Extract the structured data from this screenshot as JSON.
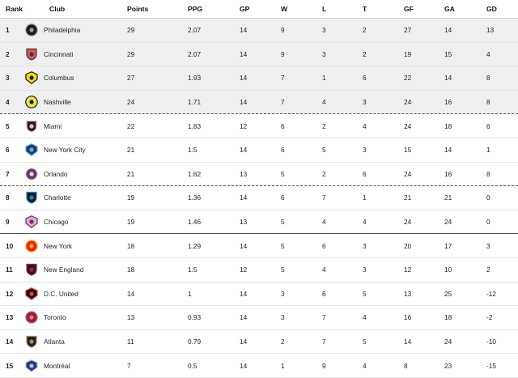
{
  "columns": {
    "rank": "Rank",
    "club": "Club",
    "points": "Points",
    "ppg": "PPG",
    "gp": "GP",
    "w": "W",
    "l": "L",
    "t": "T",
    "gf": "GF",
    "ga": "GA",
    "gd": "GD"
  },
  "rows": [
    {
      "rank": "1",
      "club": "Philadelphia",
      "points": "29",
      "ppg": "2.07",
      "gp": "14",
      "w": "9",
      "l": "3",
      "t": "2",
      "gf": "27",
      "ga": "14",
      "gd": "13",
      "logo_icon": "philadelphia-union-crest",
      "colors": [
        "#0a1e3c",
        "#b89b5e"
      ]
    },
    {
      "rank": "2",
      "club": "Cincinnati",
      "points": "29",
      "ppg": "2.07",
      "gp": "14",
      "w": "9",
      "l": "3",
      "t": "2",
      "gf": "19",
      "ga": "15",
      "gd": "4",
      "logo_icon": "fc-cincinnati-crest",
      "colors": [
        "#f05323",
        "#263b80"
      ]
    },
    {
      "rank": "3",
      "club": "Columbus",
      "points": "27",
      "ppg": "1.93",
      "gp": "14",
      "w": "7",
      "l": "1",
      "t": "6",
      "gf": "22",
      "ga": "14",
      "gd": "8",
      "logo_icon": "columbus-crew-crest",
      "colors": [
        "#fedd00",
        "#111111"
      ]
    },
    {
      "rank": "4",
      "club": "Nashville",
      "points": "24",
      "ppg": "1.71",
      "gp": "14",
      "w": "7",
      "l": "4",
      "t": "3",
      "gf": "24",
      "ga": "16",
      "gd": "8",
      "logo_icon": "nashville-sc-crest",
      "colors": [
        "#ece83a",
        "#1f1646"
      ]
    },
    {
      "rank": "5",
      "club": "Miami",
      "points": "22",
      "ppg": "1.83",
      "gp": "12",
      "w": "6",
      "l": "2",
      "t": "4",
      "gf": "24",
      "ga": "18",
      "gd": "6",
      "logo_icon": "inter-miami-crest",
      "colors": [
        "#231f20",
        "#f7b5cd"
      ]
    },
    {
      "rank": "6",
      "club": "New York City",
      "points": "21",
      "ppg": "1.5",
      "gp": "14",
      "w": "6",
      "l": "5",
      "t": "3",
      "gf": "15",
      "ga": "14",
      "gd": "1",
      "logo_icon": "nycfc-crest",
      "colors": [
        "#1e3a66",
        "#6cace4"
      ]
    },
    {
      "rank": "7",
      "club": "Orlando",
      "points": "21",
      "ppg": "1.62",
      "gp": "13",
      "w": "5",
      "l": "2",
      "t": "6",
      "gf": "24",
      "ga": "16",
      "gd": "8",
      "logo_icon": "orlando-city-crest",
      "colors": [
        "#633492",
        "#fde192"
      ]
    },
    {
      "rank": "8",
      "club": "Charlotte",
      "points": "19",
      "ppg": "1.36",
      "gp": "14",
      "w": "6",
      "l": "7",
      "t": "1",
      "gf": "21",
      "ga": "21",
      "gd": "0",
      "logo_icon": "charlotte-fc-crest",
      "colors": [
        "#1a1a1a",
        "#1a85c8"
      ]
    },
    {
      "rank": "9",
      "club": "Chicago",
      "points": "19",
      "ppg": "1.46",
      "gp": "13",
      "w": "5",
      "l": "4",
      "t": "4",
      "gf": "24",
      "ga": "24",
      "gd": "0",
      "logo_icon": "chicago-fire-crest",
      "colors": [
        "#9ec7ea",
        "#c8102e"
      ]
    },
    {
      "rank": "10",
      "club": "New York",
      "points": "18",
      "ppg": "1.29",
      "gp": "14",
      "w": "5",
      "l": "6",
      "t": "3",
      "gf": "20",
      "ga": "17",
      "gd": "3",
      "logo_icon": "ny-red-bulls-crest",
      "colors": [
        "#ed1e36",
        "#fdd000"
      ]
    },
    {
      "rank": "11",
      "club": "New England",
      "points": "18",
      "ppg": "1.5",
      "gp": "12",
      "w": "5",
      "l": "4",
      "t": "3",
      "gf": "12",
      "ga": "10",
      "gd": "2",
      "logo_icon": "new-england-revolution-crest",
      "colors": [
        "#0a2240",
        "#ce0e2d"
      ]
    },
    {
      "rank": "12",
      "club": "D.C. United",
      "points": "14",
      "ppg": "1",
      "gp": "14",
      "w": "3",
      "l": "6",
      "t": "5",
      "gf": "13",
      "ga": "25",
      "gd": "-12",
      "logo_icon": "dc-united-crest",
      "colors": [
        "#111111",
        "#ef3e42"
      ]
    },
    {
      "rank": "13",
      "club": "Toronto",
      "points": "13",
      "ppg": "0.93",
      "gp": "14",
      "w": "3",
      "l": "7",
      "t": "4",
      "gf": "16",
      "ga": "18",
      "gd": "-2",
      "logo_icon": "toronto-fc-crest",
      "colors": [
        "#b81137",
        "#9a9a9a"
      ]
    },
    {
      "rank": "14",
      "club": "Atlanta",
      "points": "11",
      "ppg": "0.79",
      "gp": "14",
      "w": "2",
      "l": "7",
      "t": "5",
      "gf": "14",
      "ga": "24",
      "gd": "-10",
      "logo_icon": "atlanta-united-crest",
      "colors": [
        "#231f20",
        "#a19060"
      ]
    },
    {
      "rank": "15",
      "club": "Montréal",
      "points": "7",
      "ppg": "0.5",
      "gp": "14",
      "w": "1",
      "l": "9",
      "t": "4",
      "gf": "8",
      "ga": "23",
      "gd": "-15",
      "logo_icon": "cf-montreal-crest",
      "colors": [
        "#1a3b8f",
        "#c0c0c0"
      ]
    }
  ]
}
